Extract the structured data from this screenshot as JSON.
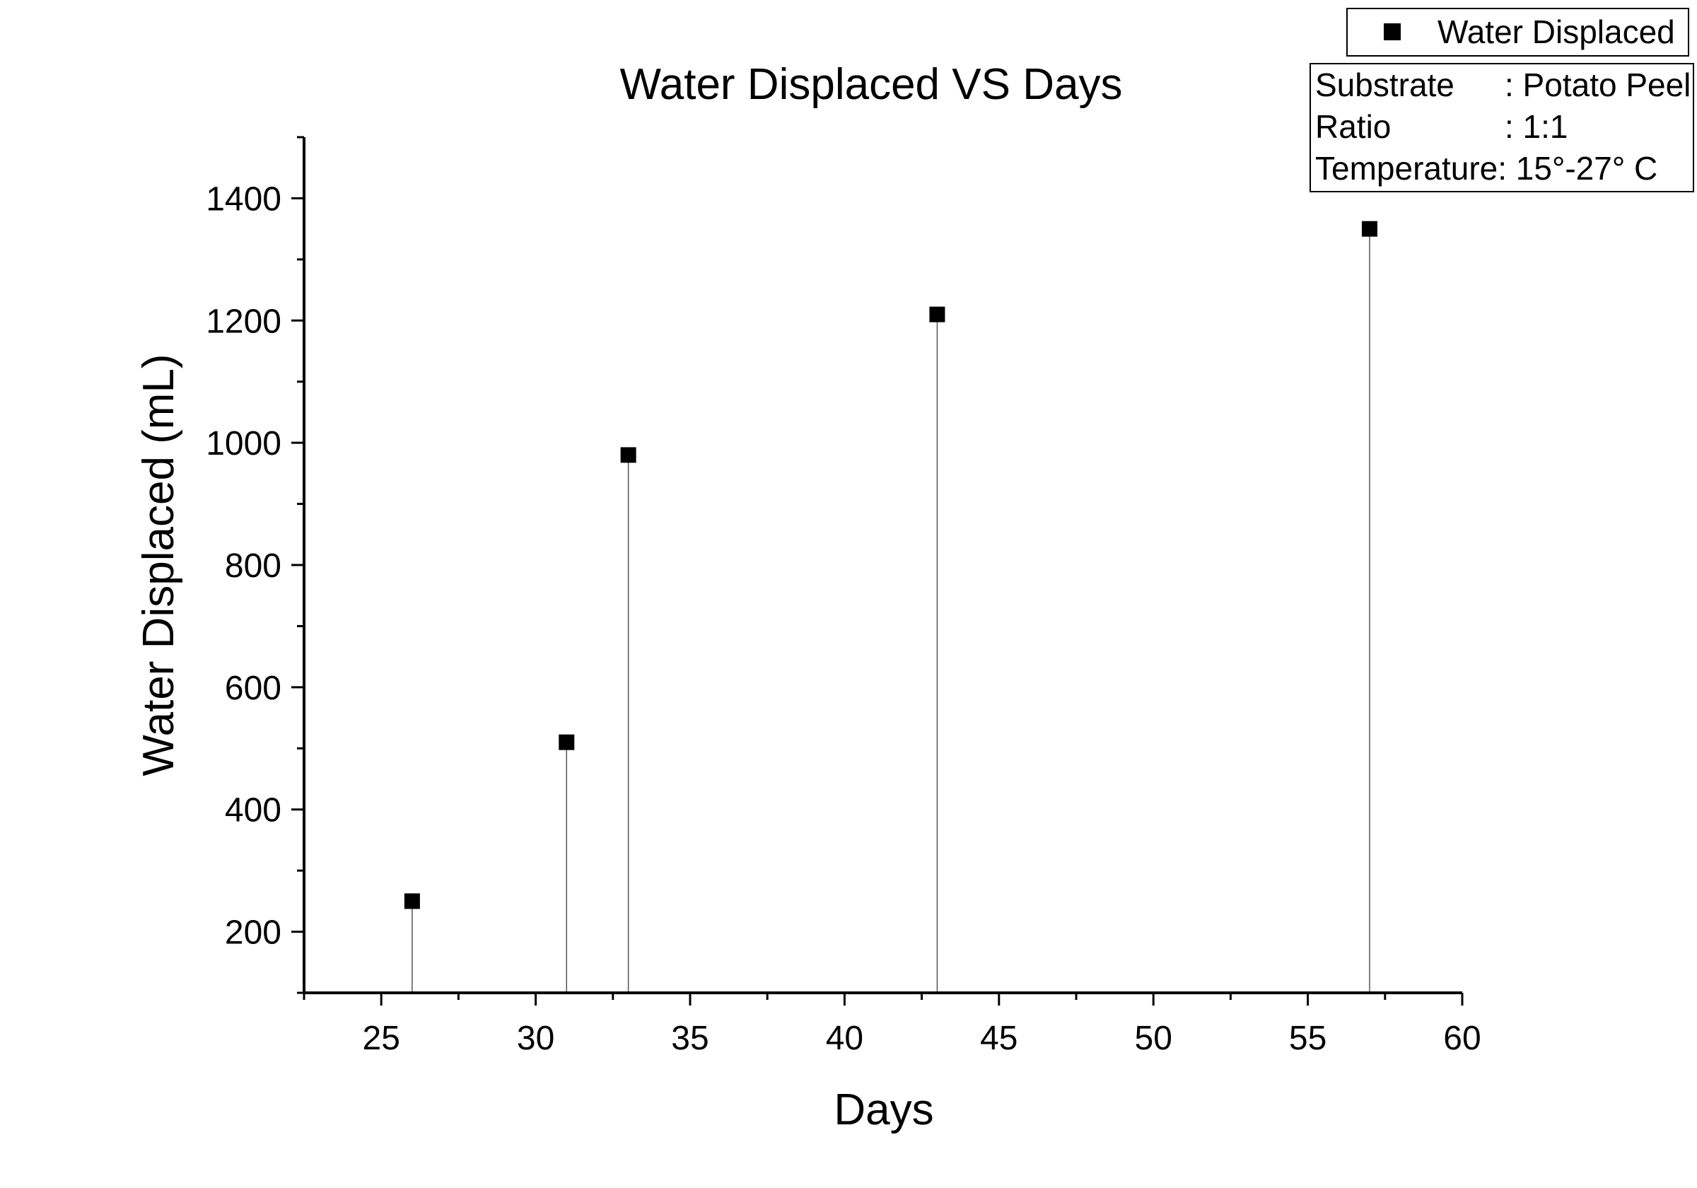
{
  "chart_data": {
    "type": "scatter",
    "title": "Water Displaced VS Days",
    "xlabel": "Days",
    "ylabel": "Water Displaced (mL)",
    "xlim": [
      22.5,
      60
    ],
    "ylim": [
      100,
      1500
    ],
    "xticks": [
      25,
      30,
      35,
      40,
      45,
      50,
      55,
      60
    ],
    "yticks": [
      200,
      400,
      600,
      800,
      1000,
      1200,
      1400
    ],
    "drop_lines": true,
    "grid": false,
    "legend_placement": "top-right",
    "series": [
      {
        "name": "Water Displaced",
        "marker": "square",
        "color": "#000000",
        "x": [
          26,
          31,
          33,
          43,
          57
        ],
        "y": [
          250,
          510,
          980,
          1210,
          1350
        ]
      }
    ],
    "annotation": {
      "rows": [
        {
          "label": "Substrate",
          "value": ": Potato Peel"
        },
        {
          "label": "Ratio",
          "value": ": 1:1"
        },
        {
          "label": "Temperature",
          "value": ": 15°-27° C"
        }
      ]
    }
  }
}
